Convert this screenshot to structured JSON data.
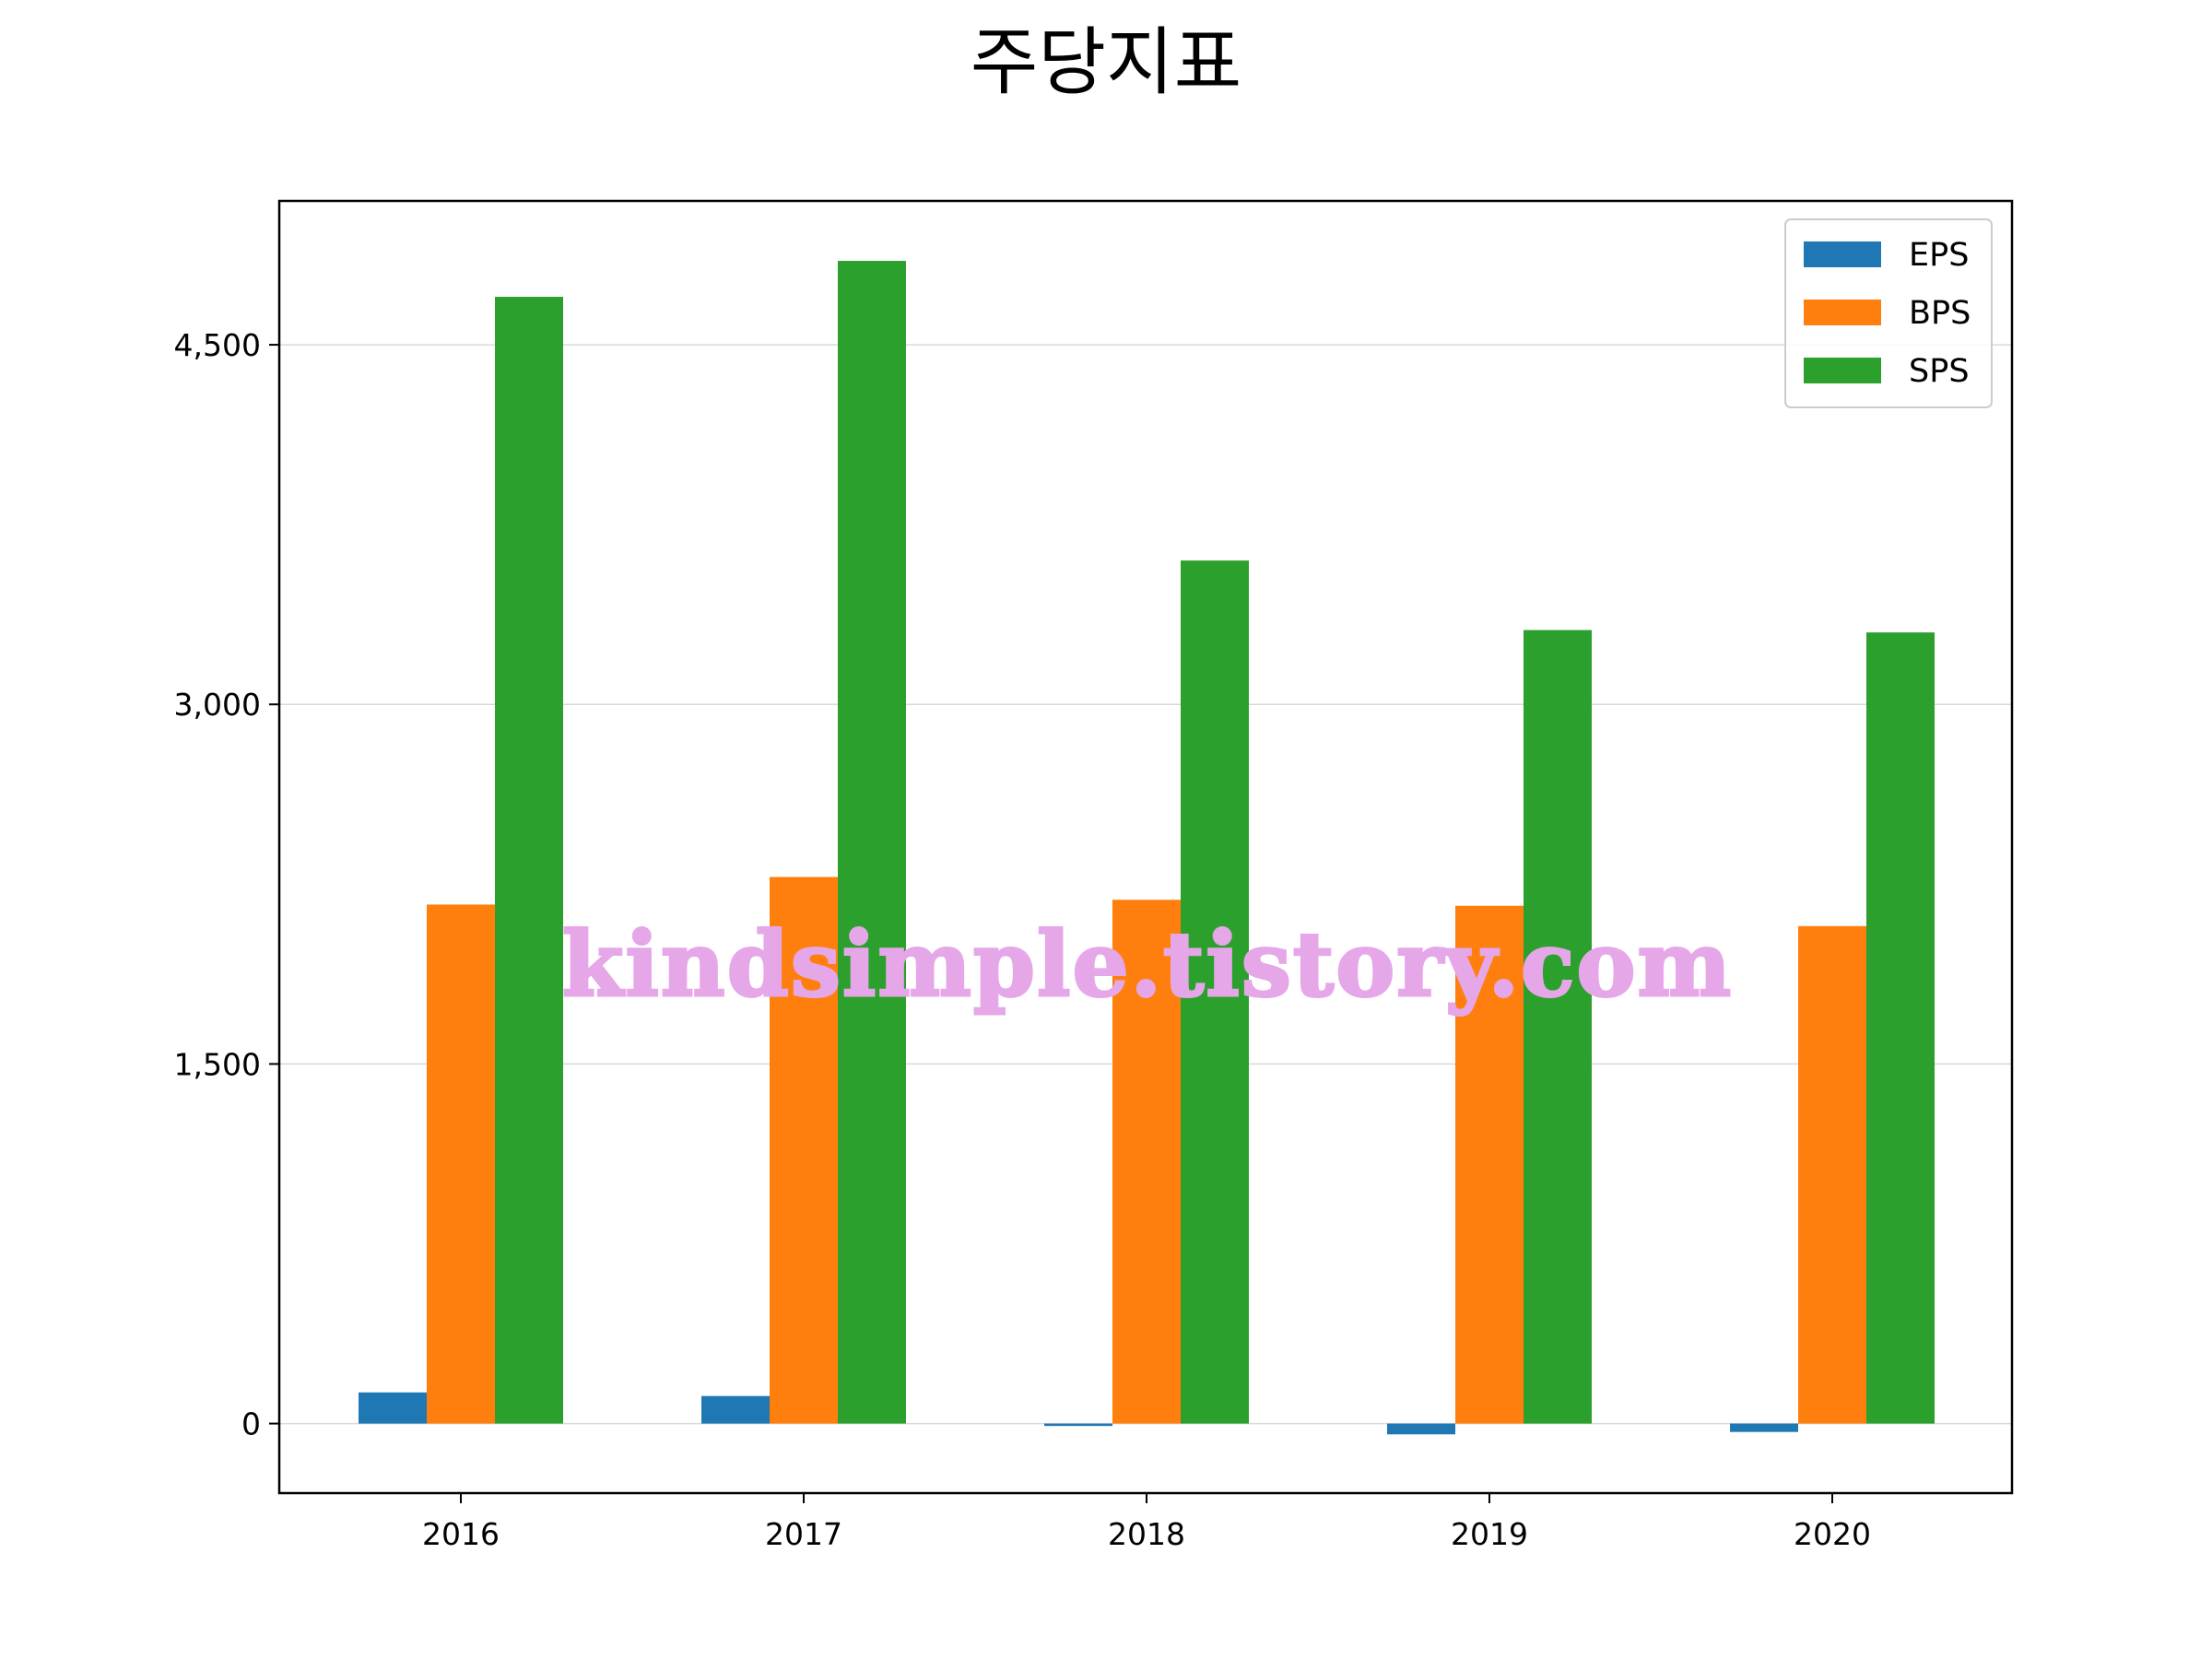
{
  "chart_data": {
    "type": "bar",
    "title": "주당지표",
    "categories": [
      "2016",
      "2017",
      "2018",
      "2019",
      "2020"
    ],
    "series": [
      {
        "name": "EPS",
        "color": "#1f77b4",
        "values": [
          130,
          115,
          -10,
          -45,
          -35
        ]
      },
      {
        "name": "BPS",
        "color": "#ff7f0e",
        "values": [
          2165,
          2280,
          2185,
          2160,
          2075
        ]
      },
      {
        "name": "SPS",
        "color": "#2ca02c",
        "values": [
          4700,
          4850,
          3600,
          3310,
          3300
        ]
      }
    ],
    "yticks": [
      0,
      1500,
      3000,
      4500
    ],
    "ytick_labels": [
      "0",
      "1,500",
      "3,000",
      "4,500"
    ],
    "ylim": [
      -290,
      5100
    ],
    "grid": true,
    "legend_position": "top-right",
    "xlabel": "",
    "ylabel": ""
  },
  "watermark": "kindsimple.tistory.com"
}
